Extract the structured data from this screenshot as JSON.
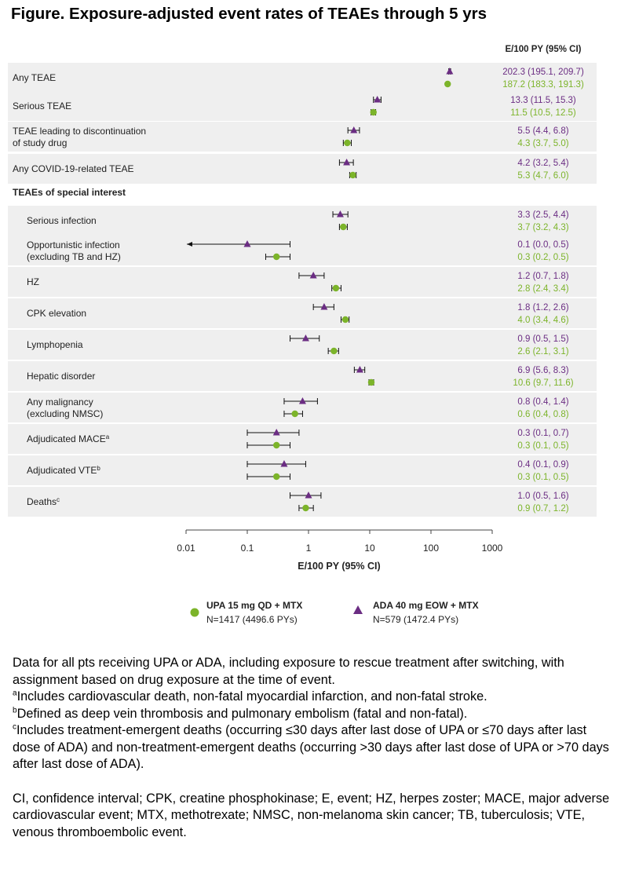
{
  "title": "Figure. Exposure-adjusted event rates of TEAEs through 5 yrs",
  "colors": {
    "upa": "#7cb42a",
    "ada": "#6b2d83",
    "band": "#efefef",
    "text": "#3a3a3a"
  },
  "chart_data": {
    "type": "forest",
    "xscale": "log",
    "xlim": [
      0.01,
      1000
    ],
    "xticks": [
      "0.01",
      "0.1",
      "1",
      "10",
      "100",
      "1000"
    ],
    "xlabel": "E/100 PY (95% CI)",
    "column_header": "E/100 PY (95%  CI)",
    "section_label": "TEAEs  of special interest",
    "series": [
      {
        "key": "ada",
        "name": "ADA 40 mg EOW + MTX",
        "n_label": "N=579 (1472.4 PYs)",
        "marker": "triangle"
      },
      {
        "key": "upa",
        "name": "UPA 15 mg QD + MTX",
        "n_label": "N=1417 (4496.6 PYs)",
        "marker": "circle"
      }
    ],
    "rows": [
      {
        "label": [
          "Any TEAE"
        ],
        "indent": false,
        "ada": [
          202.3,
          195.1,
          209.7
        ],
        "ada_text": "202.3 (195.1, 209.7)",
        "upa": [
          187.2,
          183.3,
          191.3
        ],
        "upa_text": "187.2 (183.3, 191.3)"
      },
      {
        "label": [
          "Serious TEAE"
        ],
        "indent": false,
        "ada": [
          13.3,
          11.5,
          15.3
        ],
        "ada_text": "13.3 (11.5,  15.3)",
        "upa": [
          11.5,
          10.5,
          12.5
        ],
        "upa_text": "11.5 (10.5,  12.5)"
      },
      {
        "label": [
          "TEAE leading to discontinuation",
          "of study drug"
        ],
        "indent": false,
        "ada": [
          5.5,
          4.4,
          6.8
        ],
        "ada_text": "5.5 (4.4, 6.8)",
        "upa": [
          4.3,
          3.7,
          5.0
        ],
        "upa_text": "4.3 (3.7, 5.0)"
      },
      {
        "label": [
          "Any COVID-19-related  TEAE"
        ],
        "indent": false,
        "ada": [
          4.2,
          3.2,
          5.4
        ],
        "ada_text": "4.2 (3.2, 5.4)",
        "upa": [
          5.3,
          4.7,
          6.0
        ],
        "upa_text": "5.3 (4.7, 6.0)"
      },
      {
        "label": [
          "Serious infection"
        ],
        "indent": true,
        "ada": [
          3.3,
          2.5,
          4.4
        ],
        "ada_text": "3.3 (2.5, 4.4)",
        "upa": [
          3.7,
          3.2,
          4.3
        ],
        "upa_text": "3.7 (3.2, 4.3)"
      },
      {
        "label": [
          "Opportunistic infection",
          "(excluding TB and HZ)"
        ],
        "indent": true,
        "ada": [
          0.1,
          0.0,
          0.5
        ],
        "ada_text": "0.1 (0.0, 0.5)",
        "ada_lower_arrow": true,
        "upa": [
          0.3,
          0.2,
          0.5
        ],
        "upa_text": "0.3 (0.2, 0.5)"
      },
      {
        "label": [
          "HZ"
        ],
        "indent": true,
        "ada": [
          1.2,
          0.7,
          1.8
        ],
        "ada_text": "1.2 (0.7, 1.8)",
        "upa": [
          2.8,
          2.4,
          3.4
        ],
        "upa_text": "2.8 (2.4, 3.4)"
      },
      {
        "label": [
          "CPK elevation"
        ],
        "indent": true,
        "ada": [
          1.8,
          1.2,
          2.6
        ],
        "ada_text": "1.8 (1.2, 2.6)",
        "upa": [
          4.0,
          3.4,
          4.6
        ],
        "upa_text": "4.0 (3.4, 4.6)"
      },
      {
        "label": [
          "Lymphopenia"
        ],
        "indent": true,
        "ada": [
          0.9,
          0.5,
          1.5
        ],
        "ada_text": "0.9 (0.5, 1.5)",
        "upa": [
          2.6,
          2.1,
          3.1
        ],
        "upa_text": "2.6 (2.1, 3.1)"
      },
      {
        "label": [
          "Hepatic disorder"
        ],
        "indent": true,
        "ada": [
          6.9,
          5.6,
          8.3
        ],
        "ada_text": "6.9 (5.6, 8.3)",
        "upa": [
          10.6,
          9.7,
          11.6
        ],
        "upa_text": "10.6 (9.7, 11.6)"
      },
      {
        "label": [
          "Any malignancy",
          "(excluding NMSC)"
        ],
        "indent": true,
        "ada": [
          0.8,
          0.4,
          1.4
        ],
        "ada_text": "0.8 (0.4, 1.4)",
        "upa": [
          0.6,
          0.4,
          0.8
        ],
        "upa_text": "0.6 (0.4, 0.8)"
      },
      {
        "label": [
          "Adjudicated MACE"
        ],
        "sup": "a",
        "indent": true,
        "ada": [
          0.3,
          0.1,
          0.7
        ],
        "ada_text": "0.3 (0.1, 0.7)",
        "upa": [
          0.3,
          0.1,
          0.5
        ],
        "upa_text": "0.3 (0.1, 0.5)"
      },
      {
        "label": [
          "Adjudicated VTE"
        ],
        "sup": "b",
        "indent": true,
        "ada": [
          0.4,
          0.1,
          0.9
        ],
        "ada_text": "0.4 (0.1, 0.9)",
        "upa": [
          0.3,
          0.1,
          0.5
        ],
        "upa_text": "0.3 (0.1, 0.5)"
      },
      {
        "label": [
          "Deaths"
        ],
        "sup": "c",
        "indent": true,
        "ada": [
          1.0,
          0.5,
          1.6
        ],
        "ada_text": "1.0 (0.5, 1.6)",
        "upa": [
          0.9,
          0.7,
          1.2
        ],
        "upa_text": "0.9 (0.7, 1.2)"
      }
    ]
  },
  "footnotes": {
    "intro": "Data for all pts receiving UPA or ADA, including exposure to rescue treatment after switching, with assignment based on drug exposure at the time of event.",
    "a_sup": "a",
    "a": "Includes cardiovascular death, non-fatal myocardial infarction, and non-fatal stroke.",
    "b_sup": "b",
    "b": "Defined as deep vein thrombosis and pulmonary embolism  (fatal and non-fatal).",
    "c_sup": "c",
    "c": "Includes treatment-emergent  deaths (occurring ≤30 days after last dose of UPA or ≤70 days after last dose of ADA) and non-treatment-emergent  deaths (occurring >30 days after last dose of UPA or >70 days after last dose of ADA).",
    "abbreviations": "CI, confidence interval; CPK, creatine phosphokinase;  E, event; HZ, herpes zoster; MACE, major adverse cardiovascular event; MTX, methotrexate; NMSC, non-melanoma skin cancer; TB, tuberculosis; VTE, venous thromboembolic event."
  }
}
